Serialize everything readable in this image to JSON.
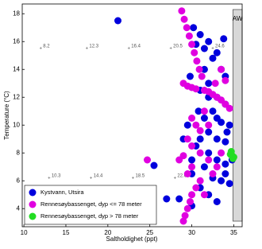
{
  "chart_data": {
    "type": "scatter",
    "x_label": "Saltholdighet (ppt)",
    "y_label": "Temperature (°C)",
    "xlim": [
      9.8,
      36
    ],
    "ylim": [
      2.7,
      18.7
    ],
    "xticks": [
      10,
      15,
      20,
      25,
      30,
      35
    ],
    "yticks": [
      4,
      6,
      8,
      10,
      12,
      14,
      16,
      18
    ],
    "grid": false,
    "legend": "lower left",
    "water_mass": {
      "label": "AW",
      "xlim": [
        34.9,
        36
      ],
      "ylim": [
        3.1,
        18.3
      ],
      "color": "#d8d8d8"
    },
    "annotations": [
      {
        "text": "8.2",
        "x": 12,
        "y": 15.5
      },
      {
        "text": "12.3",
        "x": 17.5,
        "y": 15.5
      },
      {
        "text": "16.4",
        "x": 22.5,
        "y": 15.5
      },
      {
        "text": "20.5",
        "x": 27.5,
        "y": 15.5
      },
      {
        "text": "24.6",
        "x": 32.5,
        "y": 15.5
      },
      {
        "text": "10.3",
        "x": 13,
        "y": 6.2
      },
      {
        "text": "14.4",
        "x": 18,
        "y": 6.2
      },
      {
        "text": "18.5",
        "x": 23,
        "y": 6.2
      },
      {
        "text": "22.6",
        "x": 28,
        "y": 6.2
      }
    ],
    "series": [
      {
        "name": "Kystvann, Utsira",
        "color": "#0000dd",
        "x": [
          30.5,
          31,
          31.5,
          32,
          32.5,
          33,
          33.5,
          34,
          32,
          31,
          33,
          34,
          32.5,
          31.5,
          33.5,
          34.5,
          32,
          33,
          34,
          31,
          30.5,
          32,
          33,
          34,
          31.5,
          30,
          32.5,
          33.5,
          34.5,
          31,
          32,
          33,
          30,
          34,
          33,
          32,
          31.5,
          30.2,
          29.8,
          30.8,
          29.5,
          29,
          30,
          28.5,
          27,
          25.5,
          21.2,
          33.8,
          34.8,
          34.2
        ],
        "y": [
          15.8,
          16.5,
          15.5,
          16,
          14.8,
          15.2,
          14,
          13.5,
          13,
          12.5,
          12,
          11.5,
          11,
          10.5,
          10.2,
          10,
          9.5,
          9,
          8.8,
          9,
          8.5,
          8,
          7.5,
          7.2,
          7,
          6.5,
          6.2,
          6,
          5.8,
          5.5,
          5,
          4.5,
          4.2,
          6.5,
          10.5,
          12,
          14,
          17,
          13.5,
          11,
          10,
          9,
          7.5,
          4.7,
          4.7,
          7.1,
          17.5,
          16.2,
          7.5,
          9.5
        ]
      },
      {
        "name": "Rennesøybassenget, dyp <= 78 meter",
        "color": "#e000e0",
        "x": [
          28.8,
          29.1,
          29.4,
          29.7,
          30,
          30.3,
          30.6,
          30.9,
          31.2,
          29,
          29.5,
          30,
          30.5,
          31.5,
          32,
          32.5,
          33,
          33.5,
          34,
          34.5,
          32.8,
          33.5,
          34,
          30,
          30.5,
          31,
          29.5,
          30,
          31,
          32,
          33,
          29,
          28.5,
          30,
          29.5,
          31,
          30.5,
          30,
          29.8,
          29.5,
          29.2,
          29,
          31.5,
          32.5,
          33.5,
          24.7,
          31.5,
          32
        ],
        "y": [
          18.2,
          17.6,
          17,
          16.4,
          15.8,
          15.2,
          14.6,
          14,
          13.5,
          13,
          12.8,
          12.7,
          12.6,
          12.5,
          12.4,
          12.2,
          12,
          11.8,
          11.5,
          11.2,
          13,
          14,
          13.2,
          10.5,
          10,
          9.6,
          9,
          8.5,
          8,
          7.5,
          7,
          7.8,
          7.5,
          7,
          6.5,
          6,
          5.5,
          5,
          4.5,
          4,
          3.5,
          3.1,
          5,
          6.5,
          8,
          7.5,
          11,
          10
        ]
      },
      {
        "name": "Rennesøybassenget, dyp > 78 meter",
        "color": "#22dd22",
        "x": [
          34.7,
          34.8,
          34.9,
          34.6,
          35
        ],
        "y": [
          8.1,
          7.8,
          7.6,
          7.9,
          7.7
        ]
      }
    ]
  }
}
